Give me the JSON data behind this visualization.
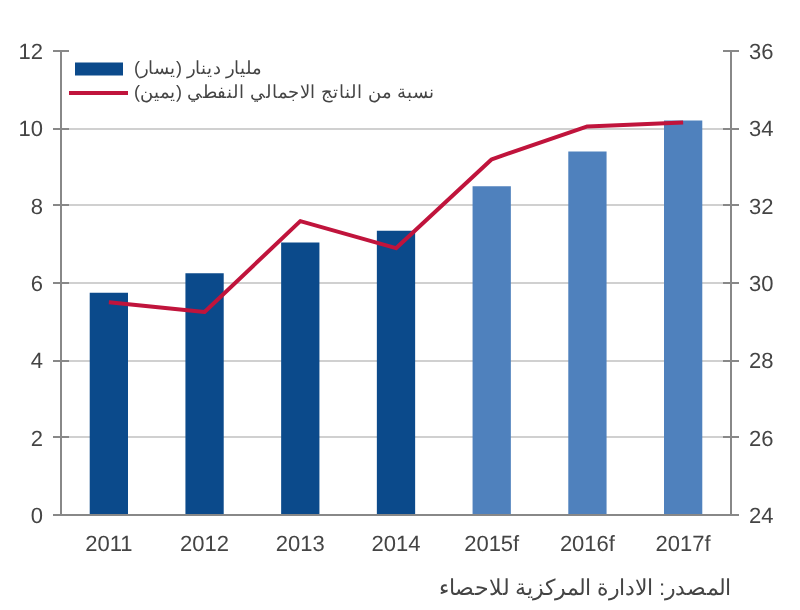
{
  "chart_data": {
    "type": "bar",
    "categories": [
      "2011",
      "2012",
      "2013",
      "2014",
      "2015f",
      "2016f",
      "2017f"
    ],
    "series": [
      {
        "name": "مليار دينار (يسار)",
        "colors": [
          "#0b4a8b",
          "#0b4a8b",
          "#0b4a8b",
          "#0b4a8b",
          "#4f81bd",
          "#4f81bd",
          "#4f81bd"
        ],
        "values": [
          5.75,
          6.25,
          7.05,
          7.35,
          8.5,
          9.4,
          10.2
        ]
      },
      {
        "type": "line",
        "name": "نسبة من الناتج الاجمالي النفطي (يمين)",
        "color": "#c0143c",
        "axis": "y2",
        "values": [
          29.5,
          29.25,
          31.6,
          30.9,
          33.2,
          34.05,
          34.15
        ]
      }
    ],
    "ylim": [
      0,
      12
    ],
    "yticks": [
      0,
      2,
      4,
      6,
      8,
      10,
      12
    ],
    "y2lim": [
      24,
      36
    ],
    "y2ticks": [
      24,
      26,
      28,
      30,
      32,
      34,
      36
    ],
    "grid": "y",
    "legend": "top left",
    "line_style": "solid",
    "marker": "none",
    "annotations": [
      "المصدر: الادارة المركزية للاحصاء"
    ]
  }
}
